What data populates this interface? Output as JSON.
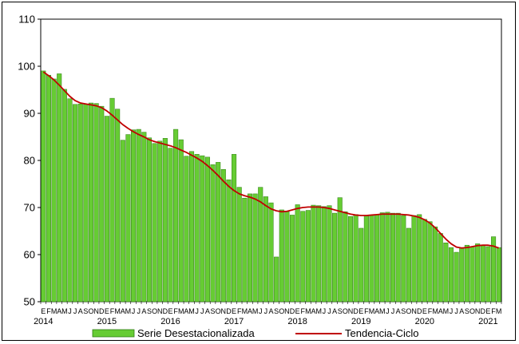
{
  "chart_data": {
    "type": "bar",
    "title": "",
    "xlabel": "",
    "ylabel": "",
    "ylim": [
      50,
      110
    ],
    "yticks": [
      50,
      60,
      70,
      80,
      90,
      100,
      110
    ],
    "grid": false,
    "legend_position": "bottom",
    "colors": {
      "bar_fill": "#66cc33",
      "bar_edge": "#2e7d12",
      "trend_line": "#c00000"
    },
    "month_letters": [
      "E",
      "F",
      "M",
      "A",
      "M",
      "J",
      "J",
      "A",
      "S",
      "O",
      "N",
      "D"
    ],
    "years": [
      "2014",
      "2015",
      "2016",
      "2017",
      "2018",
      "2019",
      "2020",
      "2021"
    ],
    "series": [
      {
        "name": "Serie Desestacionalizada",
        "kind": "bar",
        "values": [
          99.0,
          98.1,
          97.3,
          98.4,
          95.1,
          93.1,
          91.9,
          92.0,
          91.9,
          92.2,
          92.1,
          91.5,
          89.4,
          93.2,
          90.9,
          84.3,
          85.5,
          86.5,
          86.6,
          86.0,
          84.8,
          83.6,
          84.1,
          84.7,
          82.6,
          86.6,
          84.4,
          80.9,
          81.9,
          81.3,
          81.0,
          80.7,
          79.1,
          79.6,
          78.1,
          75.9,
          81.3,
          74.3,
          72.0,
          72.9,
          72.9,
          74.3,
          72.3,
          71.0,
          59.5,
          69.5,
          69.1,
          68.4,
          70.6,
          69.2,
          69.4,
          70.5,
          70.4,
          70.2,
          70.4,
          68.8,
          72.1,
          69.1,
          68.1,
          68.5,
          65.6,
          68.2,
          68.3,
          68.5,
          68.9,
          69.0,
          68.8,
          68.8,
          68.3,
          65.6,
          68.3,
          68.5,
          67.5,
          67.0,
          65.9,
          64.5,
          62.5,
          61.5,
          60.5,
          61.5,
          62.0,
          61.7,
          62.3,
          62.0,
          61.7,
          63.8,
          61.5
        ]
      },
      {
        "name": "Tendencia-Ciclo",
        "kind": "line",
        "values": [
          98.8,
          98.0,
          97.1,
          96.0,
          94.8,
          93.6,
          92.7,
          92.2,
          92.0,
          91.8,
          91.6,
          91.2,
          90.5,
          89.6,
          88.6,
          87.6,
          86.8,
          86.1,
          85.5,
          85.0,
          84.4,
          84.0,
          83.7,
          83.4,
          83.1,
          82.7,
          82.2,
          81.7,
          81.1,
          80.5,
          79.8,
          78.9,
          77.9,
          76.8,
          75.6,
          74.5,
          73.6,
          72.9,
          72.5,
          72.2,
          71.8,
          71.2,
          70.4,
          69.7,
          69.3,
          69.1,
          69.2,
          69.5,
          69.8,
          70.0,
          70.1,
          70.1,
          70.1,
          70.0,
          69.8,
          69.5,
          69.2,
          68.9,
          68.6,
          68.4,
          68.3,
          68.3,
          68.4,
          68.5,
          68.6,
          68.6,
          68.6,
          68.6,
          68.5,
          68.4,
          68.2,
          67.9,
          67.4,
          66.7,
          65.7,
          64.5,
          63.3,
          62.3,
          61.6,
          61.4,
          61.5,
          61.7,
          61.9,
          62.0,
          62.0,
          61.8,
          61.4
        ]
      }
    ]
  }
}
